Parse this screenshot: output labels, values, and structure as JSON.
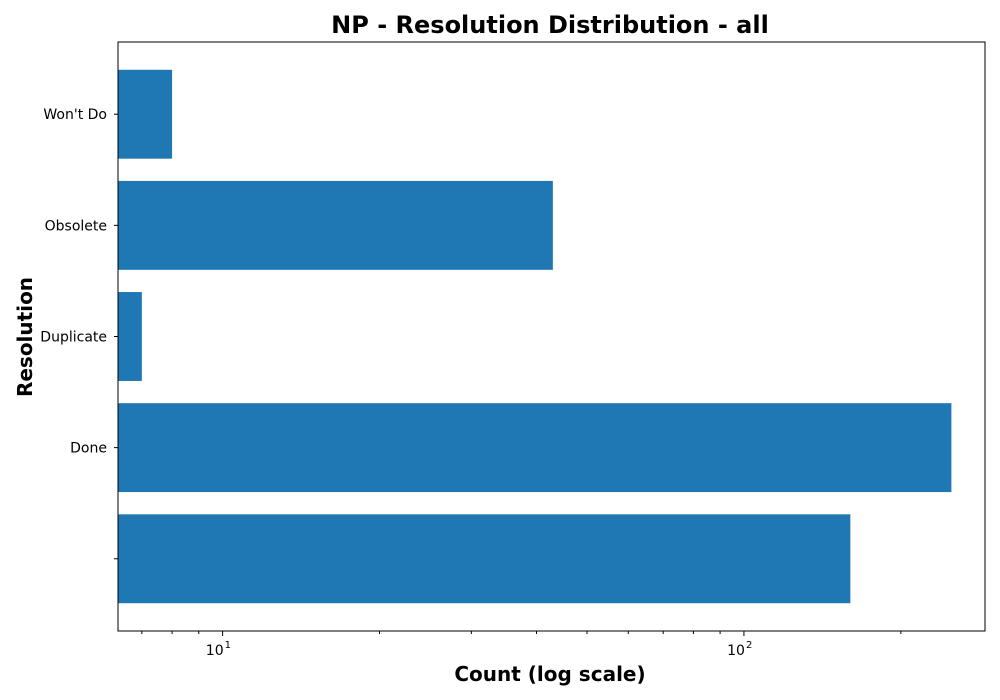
{
  "chart_data": {
    "type": "bar",
    "orientation": "horizontal",
    "title": "NP - Resolution Distribution - all",
    "xlabel": "Count (log scale)",
    "ylabel": "Resolution",
    "x_scale": "log",
    "xlim": [
      6.3,
      290
    ],
    "categories": [
      "",
      "Done",
      "Duplicate",
      "Obsolete",
      "Won't Do"
    ],
    "values": [
      160,
      250,
      7,
      43,
      8
    ],
    "major_ticks": [
      {
        "value": 10,
        "base": "10",
        "exp": "1"
      },
      {
        "value": 100,
        "base": "10",
        "exp": "2"
      }
    ],
    "minor_ticks": [
      7,
      8,
      9,
      20,
      30,
      40,
      50,
      60,
      70,
      80,
      90,
      200
    ],
    "bar_color": "#1f77b4",
    "grid": false,
    "legend": "none"
  }
}
